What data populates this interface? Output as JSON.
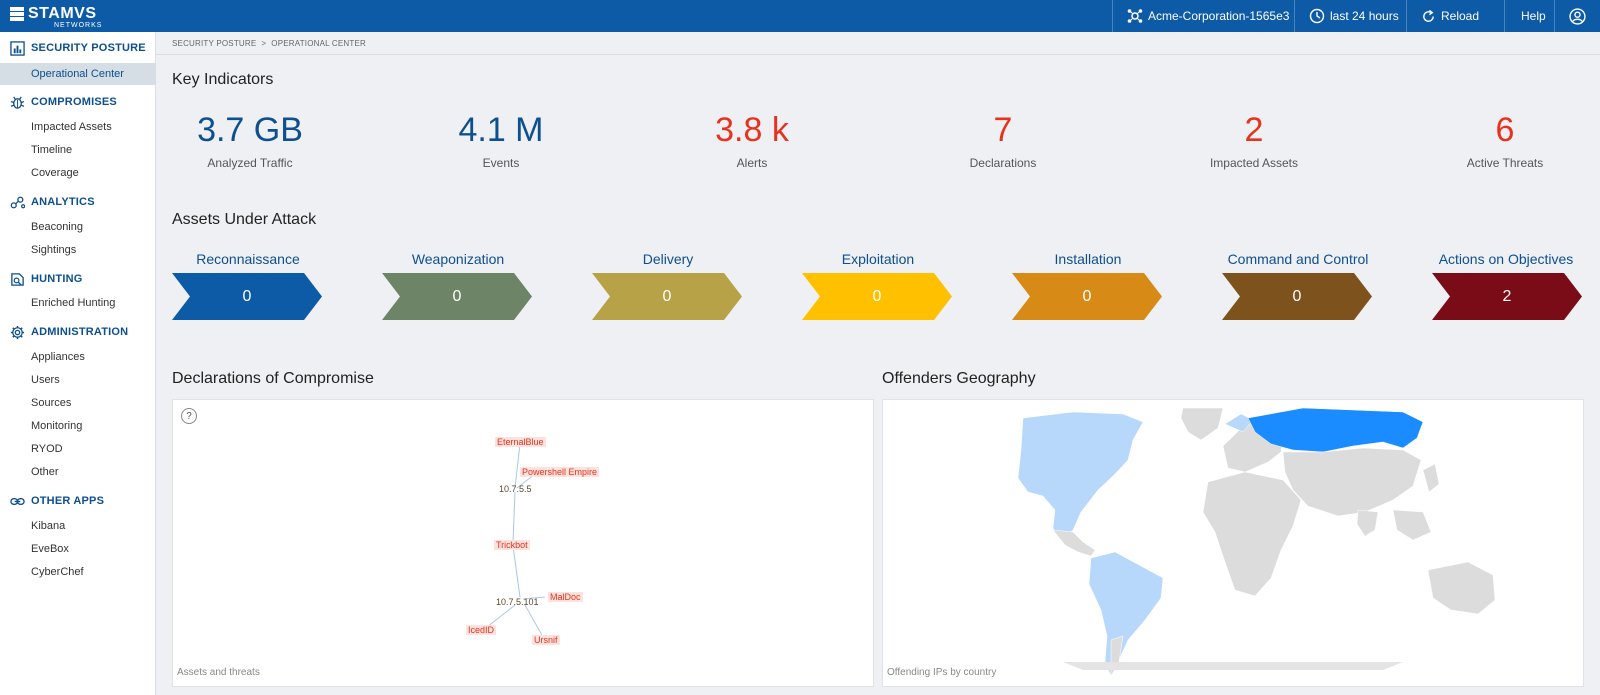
{
  "brand": {
    "name": "STAMVS",
    "sub": "NETWORKS"
  },
  "topbar": {
    "org": "Acme-Corporation-1565e3",
    "time_range": "last 24 hours",
    "reload": "Reload",
    "help": "Help"
  },
  "breadcrumb": {
    "parent": "SECURITY POSTURE",
    "sep": ">",
    "current": "OPERATIONAL CENTER"
  },
  "sidebar": {
    "security_posture": {
      "title": "SECURITY POSTURE",
      "items": [
        "Operational Center"
      ]
    },
    "compromises": {
      "title": "COMPROMISES",
      "items": [
        "Impacted Assets",
        "Timeline",
        "Coverage"
      ]
    },
    "analytics": {
      "title": "ANALYTICS",
      "items": [
        "Beaconing",
        "Sightings"
      ]
    },
    "hunting": {
      "title": "HUNTING",
      "items": [
        "Enriched Hunting"
      ]
    },
    "administration": {
      "title": "ADMINISTRATION",
      "items": [
        "Appliances",
        "Users",
        "Sources",
        "Monitoring",
        "RYOD",
        "Other"
      ]
    },
    "other_apps": {
      "title": "OTHER APPS",
      "items": [
        "Kibana",
        "EveBox",
        "CyberChef"
      ]
    }
  },
  "key_indicators": {
    "title": "Key Indicators",
    "items": [
      {
        "value": "3.7 GB",
        "label": "Analyzed Traffic"
      },
      {
        "value": "4.1 M",
        "label": "Events"
      },
      {
        "value": "3.8 k",
        "label": "Alerts"
      },
      {
        "value": "7",
        "label": "Declarations"
      },
      {
        "value": "2",
        "label": "Impacted Assets"
      },
      {
        "value": "6",
        "label": "Active Threats"
      }
    ]
  },
  "assets_under_attack": {
    "title": "Assets Under Attack",
    "phases": [
      {
        "label": "Reconnaissance",
        "count": "0",
        "color": "#0d5aa7"
      },
      {
        "label": "Weaponization",
        "count": "0",
        "color": "#6e8466"
      },
      {
        "label": "Delivery",
        "count": "0",
        "color": "#b8a247"
      },
      {
        "label": "Exploitation",
        "count": "0",
        "color": "#ffc000"
      },
      {
        "label": "Installation",
        "count": "0",
        "color": "#d88a16"
      },
      {
        "label": "Command and Control",
        "count": "0",
        "color": "#7e521c"
      },
      {
        "label": "Actions on Objectives",
        "count": "2",
        "color": "#7a0c17"
      }
    ]
  },
  "declarations": {
    "title": "Declarations of Compromise",
    "help": "?",
    "caption": "Assets and threats",
    "threats": [
      "EternalBlue",
      "Powershell Empire",
      "Trickbot",
      "MalDoc",
      "IcedID",
      "Ursnif"
    ],
    "assets": [
      "10.7.5.5",
      "10.7.5.101"
    ]
  },
  "geography": {
    "title": "Offenders Geography",
    "caption": "Offending IPs by country"
  }
}
